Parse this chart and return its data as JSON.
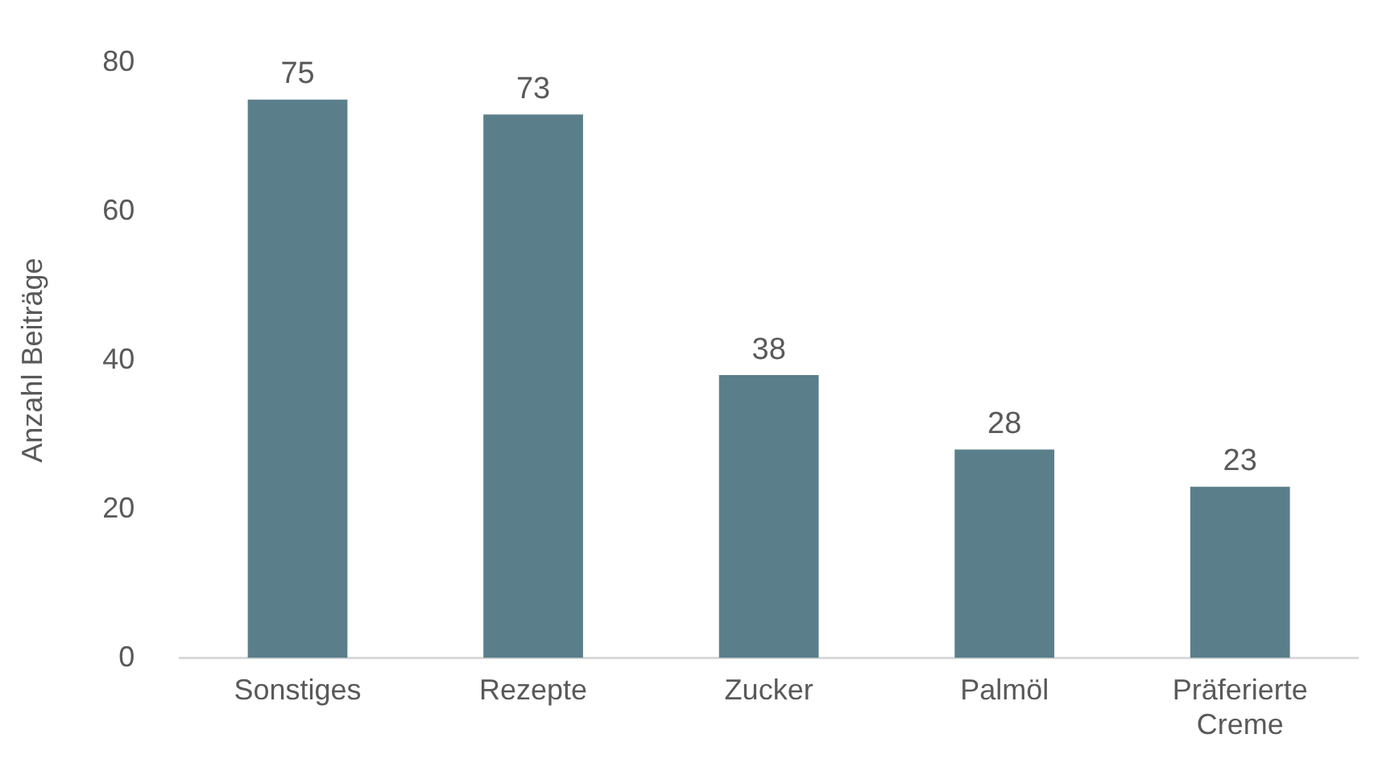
{
  "chart_data": {
    "type": "bar",
    "ylabel": "Anzahl Beiträge",
    "categories": [
      "Sonstiges",
      "Rezepte",
      "Zucker",
      "Palmöl",
      "Präferierte Creme"
    ],
    "values": [
      75,
      73,
      38,
      28,
      23
    ],
    "color": "#5a7f8b",
    "ylim": [
      0,
      80
    ],
    "yticks": [
      0,
      20,
      40,
      60,
      80
    ],
    "grid": false,
    "legend": false,
    "data_labels": true
  }
}
